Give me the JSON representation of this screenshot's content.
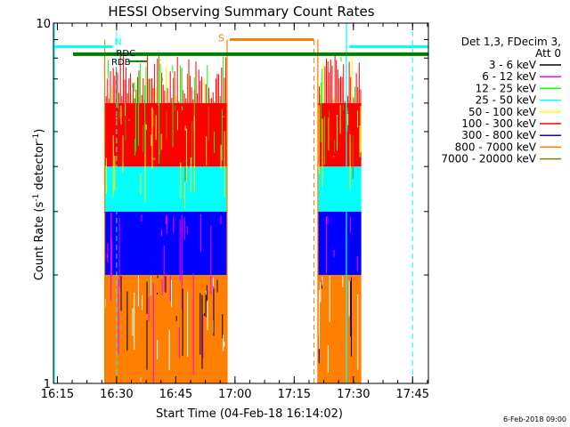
{
  "chart_data": {
    "type": "line",
    "title": "HESSI Observing Summary Count Rates",
    "xlabel": "Start Time (04-Feb-18 16:14:02)",
    "ylabel_main": "Count Rate (s",
    "ylabel_sup1": "-1",
    "ylabel_mid": " detector",
    "ylabel_sup2": "-1",
    "ylabel_end": ")",
    "x_range_minutes_after_16_14_02": [
      0,
      95
    ],
    "x_ticks": [
      {
        "label": "16:15",
        "minute": 1
      },
      {
        "label": "16:30",
        "minute": 16
      },
      {
        "label": "16:45",
        "minute": 31
      },
      {
        "label": "17:00",
        "minute": 46
      },
      {
        "label": "17:15",
        "minute": 61
      },
      {
        "label": "17:30",
        "minute": 76
      },
      {
        "label": "17:45",
        "minute": 91
      }
    ],
    "y_scale": "log",
    "ylim": [
      1,
      10
    ],
    "y_ticks": [
      {
        "label": "1",
        "value": 1
      },
      {
        "label": "10",
        "value": 10
      }
    ],
    "legend_header": [
      "Det 1,3, FDecim 3,",
      "Att 0"
    ],
    "series": [
      {
        "name": "3 - 6 keV",
        "color": "#000000"
      },
      {
        "name": "6 - 12 keV",
        "color": "#ff00ff"
      },
      {
        "name": "12 - 25 keV",
        "color": "#00ff00"
      },
      {
        "name": "25 - 50 keV",
        "color": "#00ffff"
      },
      {
        "name": "50 - 100 keV",
        "color": "#ffff00"
      },
      {
        "name": "100 - 300 keV",
        "color": "#ff0000"
      },
      {
        "name": "300 - 800 keV",
        "color": "#0000ff"
      },
      {
        "name": "800 - 7000 keV",
        "color": "#ff8000"
      },
      {
        "name": "7000 - 20000 keV",
        "color": "#808000"
      }
    ],
    "data_segments_minutes": [
      [
        13,
        44
      ],
      [
        67,
        78
      ]
    ],
    "band_levels": {
      "orange_top": 2.0,
      "blue_top": 3.0,
      "cyan_top": 4.0,
      "red_top": 6.0,
      "spike_max": 8.3
    },
    "flags": {
      "saa_label": "S",
      "saa_range_minutes": [
        44,
        66
      ],
      "saa_level": 9.0,
      "night_label": "N",
      "night_range_minutes": [
        0,
        15
      ],
      "night_level": 8.6,
      "night2_range_minutes": [
        75,
        95
      ],
      "rdc_label": "RDC",
      "rdb_label": "RDB",
      "green_bar_level": 8.2,
      "cyan_dashed_minutes": [
        16,
        91
      ],
      "orange_dashed_minutes": [
        66
      ],
      "cyan_solid_minutes": [
        0,
        74
      ],
      "orange_solid_minutes": [
        13,
        44,
        67
      ]
    }
  },
  "footer": {
    "timestamp": "6-Feb-2018 09:00"
  }
}
